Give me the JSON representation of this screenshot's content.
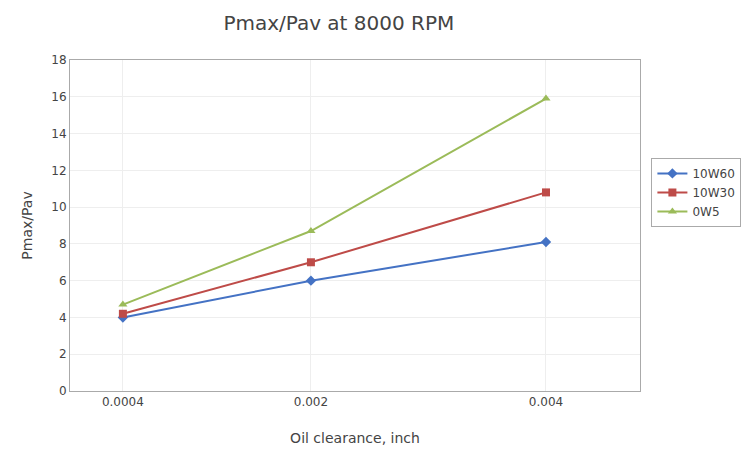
{
  "chart_data": {
    "type": "line",
    "title": "Pmax/Pav at 8000 RPM",
    "xlabel": "Oil clearance, inch",
    "ylabel": "Pmax/Pav",
    "x": [
      0.0004,
      0.002,
      0.004
    ],
    "series": [
      {
        "name": "10W60",
        "color": "#4472C4",
        "marker": "diamond",
        "values": [
          4.0,
          6.0,
          8.1
        ]
      },
      {
        "name": "10W30",
        "color": "#BE4B48",
        "marker": "square",
        "values": [
          4.2,
          7.0,
          10.8
        ]
      },
      {
        "name": "0W5",
        "color": "#9BBB59",
        "marker": "triangle-up",
        "values": [
          4.7,
          8.7,
          15.9
        ]
      }
    ],
    "xlim": [
      -5e-05,
      0.0048
    ],
    "xticks": [
      0.0004,
      0.002,
      0.004
    ],
    "ylim": [
      0,
      18
    ],
    "yticks": [
      0,
      2,
      4,
      6,
      8,
      10,
      12,
      14,
      16,
      18
    ],
    "grid": true,
    "legend": "right"
  }
}
